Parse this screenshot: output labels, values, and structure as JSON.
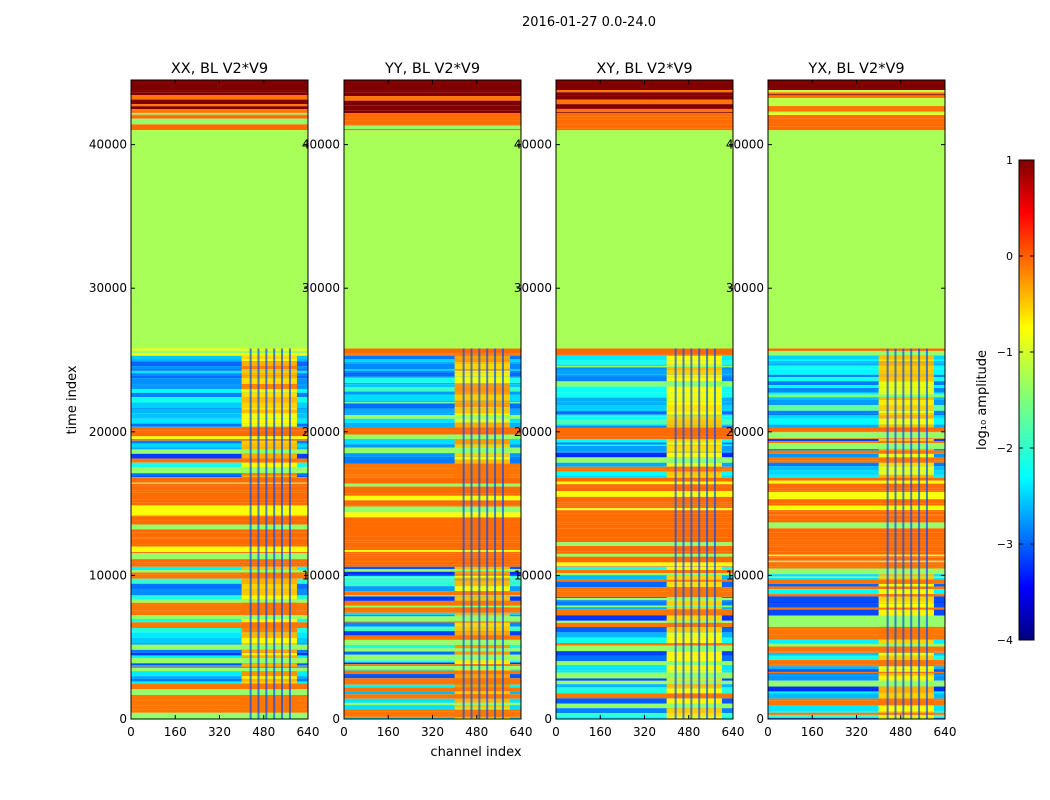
{
  "figure_title": "2016-01-27 0.0-24.0",
  "chart_data": {
    "type": "heatmap",
    "suptitle": "2016-01-27 0.0-24.0",
    "xlabel": "channel index",
    "ylabel": "time index",
    "xlim": [
      0,
      640
    ],
    "ylim": [
      0,
      44500
    ],
    "xticks": [
      0,
      160,
      320,
      480,
      640
    ],
    "yticks": [
      0,
      10000,
      20000,
      30000,
      40000
    ],
    "panels": [
      {
        "title": "XX, BL V2*V9",
        "hot": 3,
        "seed": 11
      },
      {
        "title": "YY, BL V2*V9",
        "hot": 2.5,
        "seed": 23
      },
      {
        "title": "XY, BL V2*V9",
        "hot": 1,
        "seed": 37
      },
      {
        "title": "YX, BL V2*V9",
        "hot": 1.5,
        "seed": 41
      }
    ],
    "colorbar": {
      "label": "log₁₀ amplitude",
      "colormap": "jet",
      "min": -4,
      "max": 1,
      "ticks": [
        1,
        0,
        -1,
        -2,
        -3,
        -4
      ],
      "tick_labels": [
        "1",
        "0",
        "−1",
        "−2",
        "−3",
        "−4"
      ]
    },
    "bands": [
      {
        "from": 44500,
        "to": 43800,
        "value": 1
      },
      {
        "from": 43800,
        "to": 42200,
        "value": "stripes-dark"
      },
      {
        "from": 42200,
        "to": 41000,
        "value": "stripes-orange"
      },
      {
        "from": 41000,
        "to": 25800,
        "value": -1.3
      },
      {
        "from": 25800,
        "to": 25300,
        "value": "stripes-orange"
      },
      {
        "from": 25300,
        "to": 20300,
        "value": "noise"
      },
      {
        "from": 20300,
        "to": 19500,
        "value": "stripes-orange"
      },
      {
        "from": 19500,
        "to": 16800,
        "value": "stripes-noise"
      },
      {
        "from": 16800,
        "to": 10600,
        "value": "stripes-orange"
      },
      {
        "from": 10600,
        "to": 0,
        "value": "stripes-noise"
      }
    ]
  }
}
